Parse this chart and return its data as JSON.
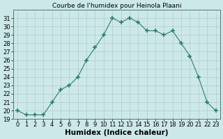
{
  "x": [
    0,
    1,
    2,
    3,
    4,
    5,
    6,
    7,
    8,
    9,
    10,
    11,
    12,
    13,
    14,
    15,
    16,
    17,
    18,
    19,
    20,
    21,
    22,
    23
  ],
  "y": [
    20.0,
    19.5,
    19.5,
    19.5,
    21.0,
    22.5,
    23.0,
    24.0,
    26.0,
    27.5,
    29.0,
    31.0,
    30.5,
    31.0,
    30.5,
    29.5,
    29.5,
    29.0,
    29.5,
    28.0,
    26.5,
    24.0,
    21.0,
    20.0
  ],
  "title": "Courbe de l'humidex pour Heinola Plaani",
  "xlabel": "Humidex (Indice chaleur)",
  "xlim": [
    -0.5,
    23.5
  ],
  "ylim": [
    19,
    32
  ],
  "yticks": [
    19,
    20,
    21,
    22,
    23,
    24,
    25,
    26,
    27,
    28,
    29,
    30,
    31
  ],
  "xticks": [
    0,
    1,
    2,
    3,
    4,
    5,
    6,
    7,
    8,
    9,
    10,
    11,
    12,
    13,
    14,
    15,
    16,
    17,
    18,
    19,
    20,
    21,
    22,
    23
  ],
  "line_color": "#2e7d6e",
  "marker": "+",
  "bg_color": "#cce8e8",
  "grid_color": "#b0cccc",
  "title_fontsize": 6.5,
  "label_fontsize": 7.5,
  "tick_fontsize": 6.0
}
